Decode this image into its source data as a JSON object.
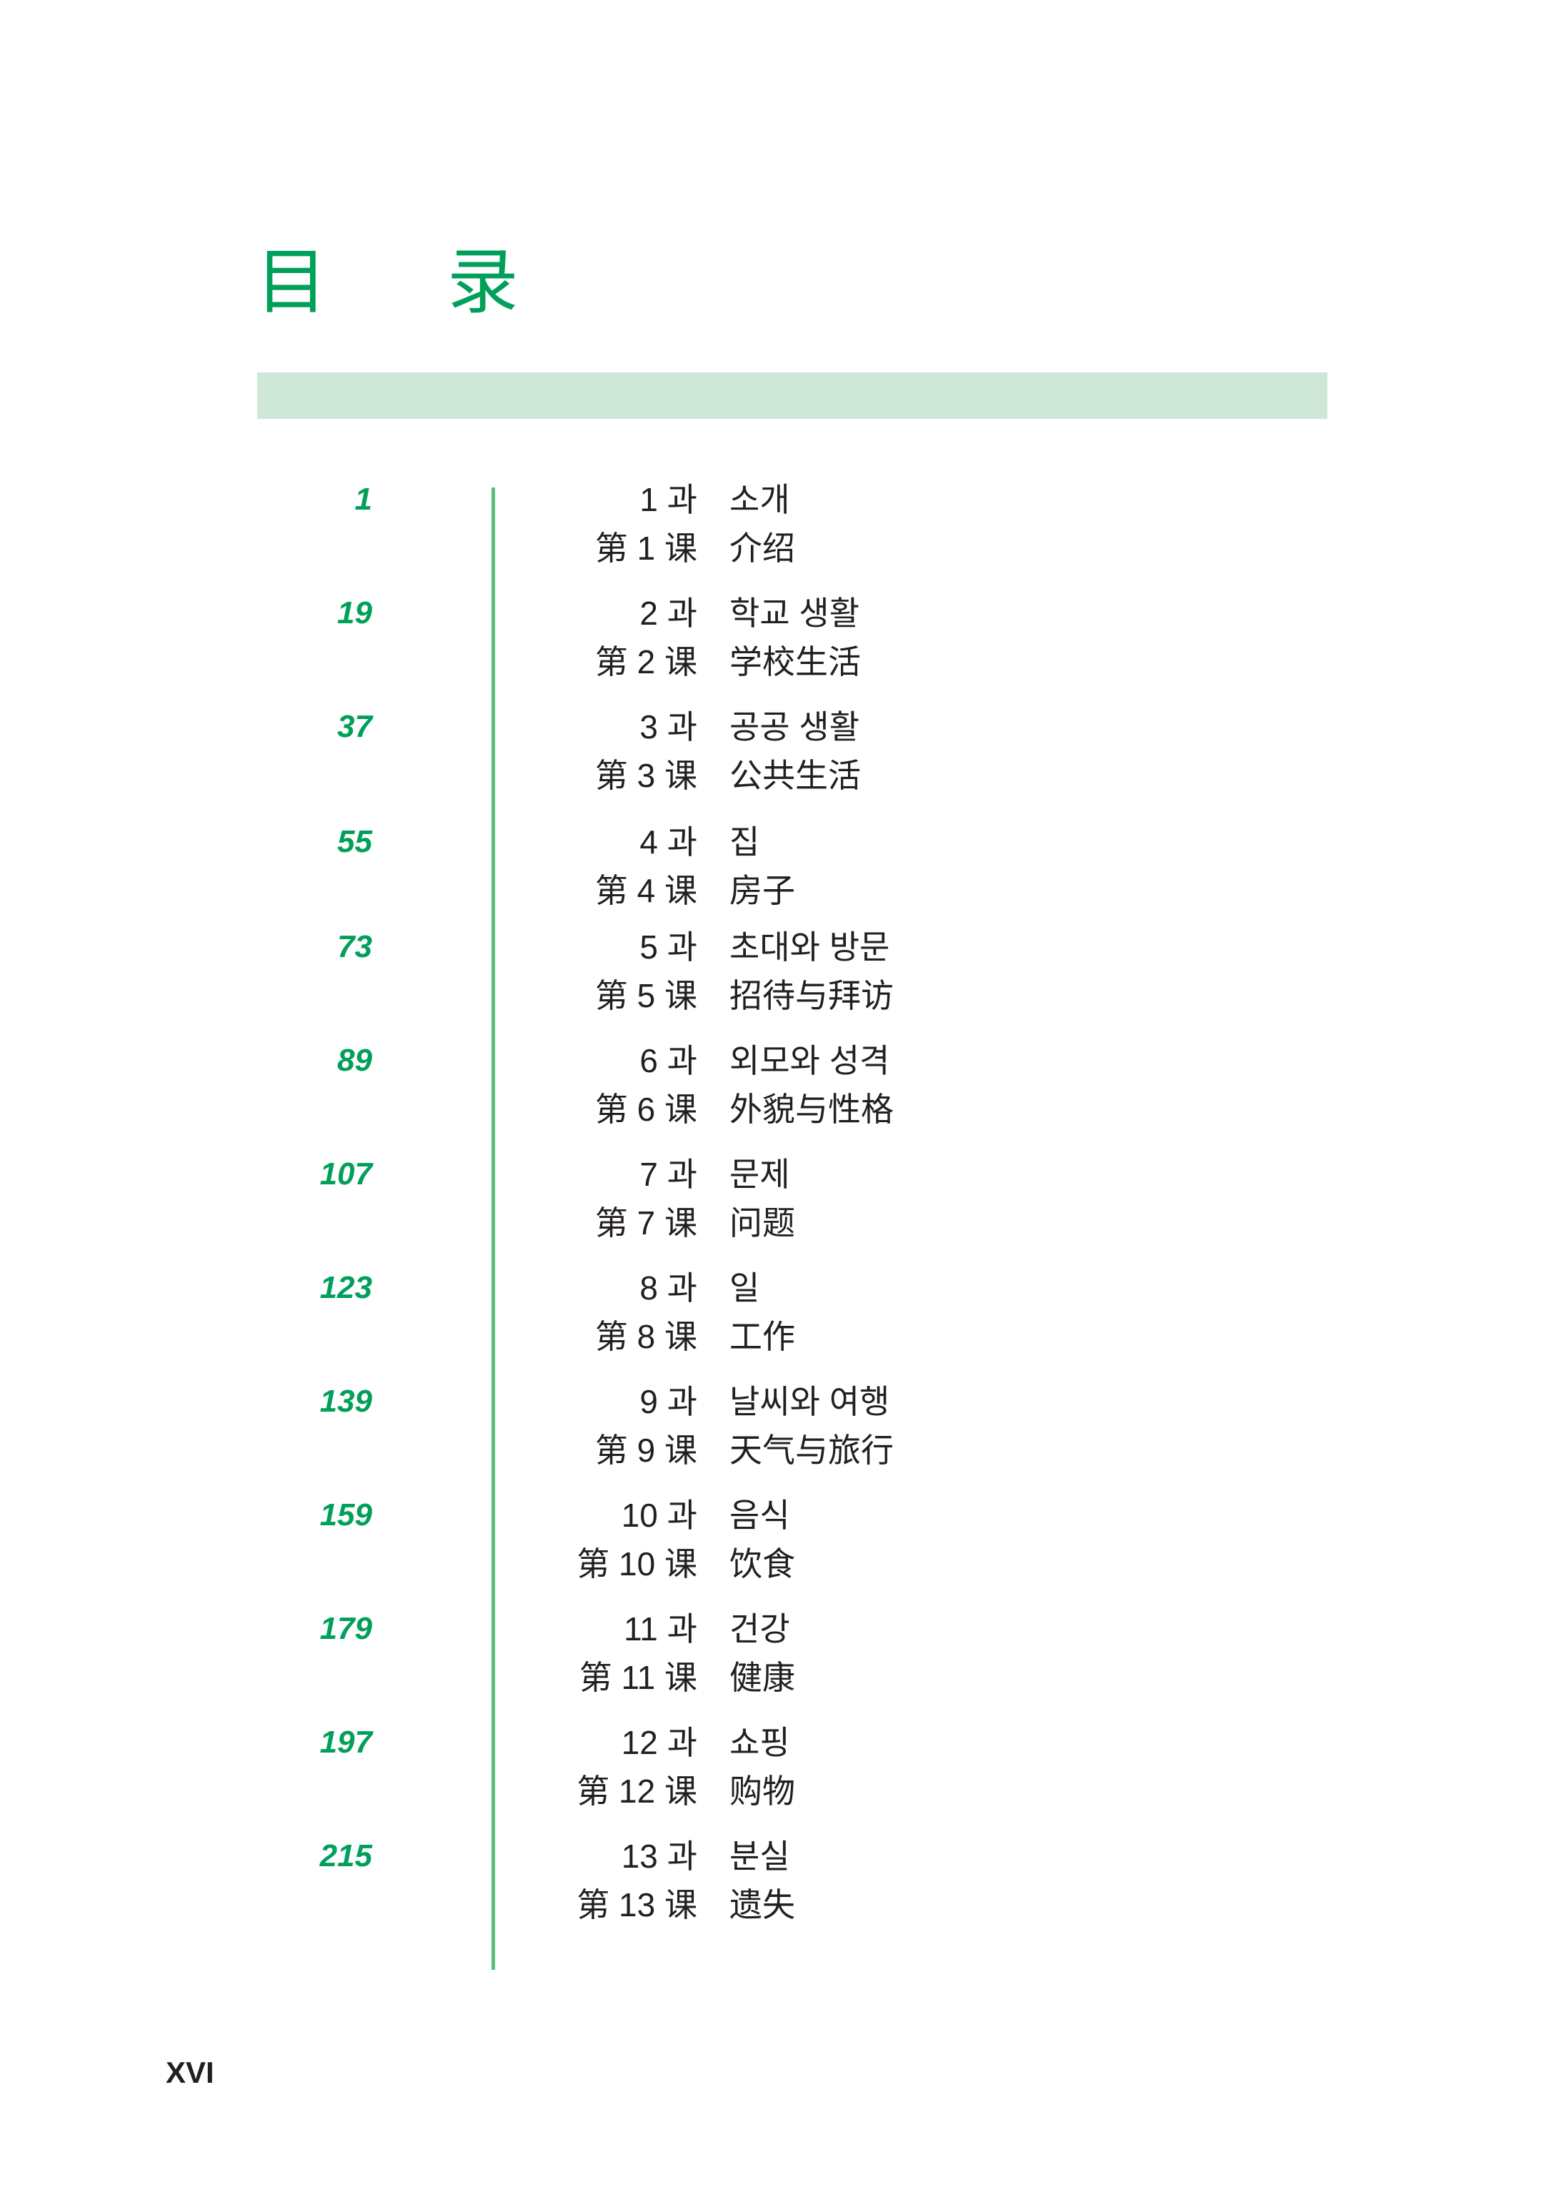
{
  "title": "目 录",
  "colors": {
    "accent": "#00a05a",
    "band": "#cfe7d6",
    "rule": "#5cbf80",
    "text": "#231f20"
  },
  "entries": [
    {
      "page": "1",
      "ko_num": "1 과",
      "ko_title": "소개",
      "zh_num": "第 1 课",
      "zh_title": "介绍"
    },
    {
      "page": "19",
      "ko_num": "2 과",
      "ko_title": "학교 생활",
      "zh_num": "第 2 课",
      "zh_title": "学校生活"
    },
    {
      "page": "37",
      "ko_num": "3 과",
      "ko_title": "공공 생활",
      "zh_num": "第 3 课",
      "zh_title": "公共生活"
    },
    {
      "page": "55",
      "ko_num": "4 과",
      "ko_title": "집",
      "zh_num": "第 4 课",
      "zh_title": "房子"
    },
    {
      "page": "73",
      "ko_num": "5 과",
      "ko_title": "초대와 방문",
      "zh_num": "第 5 课",
      "zh_title": "招待与拜访"
    },
    {
      "page": "89",
      "ko_num": "6 과",
      "ko_title": "외모와 성격",
      "zh_num": "第 6 课",
      "zh_title": "外貌与性格"
    },
    {
      "page": "107",
      "ko_num": "7 과",
      "ko_title": "문제",
      "zh_num": "第 7 课",
      "zh_title": "问题"
    },
    {
      "page": "123",
      "ko_num": "8 과",
      "ko_title": "일",
      "zh_num": "第 8 课",
      "zh_title": "工作"
    },
    {
      "page": "139",
      "ko_num": "9 과",
      "ko_title": "날씨와 여행",
      "zh_num": "第 9 课",
      "zh_title": "天气与旅行"
    },
    {
      "page": "159",
      "ko_num": "10 과",
      "ko_title": "음식",
      "zh_num": "第 10 课",
      "zh_title": "饮食"
    },
    {
      "page": "179",
      "ko_num": "11 과",
      "ko_title": "건강",
      "zh_num": "第 11 课",
      "zh_title": "健康"
    },
    {
      "page": "197",
      "ko_num": "12 과",
      "ko_title": "쇼핑",
      "zh_num": "第 12 课",
      "zh_title": "购物"
    },
    {
      "page": "215",
      "ko_num": "13 과",
      "ko_title": "분실",
      "zh_num": "第 13 课",
      "zh_title": "遗失"
    }
  ],
  "folio": "XVI"
}
